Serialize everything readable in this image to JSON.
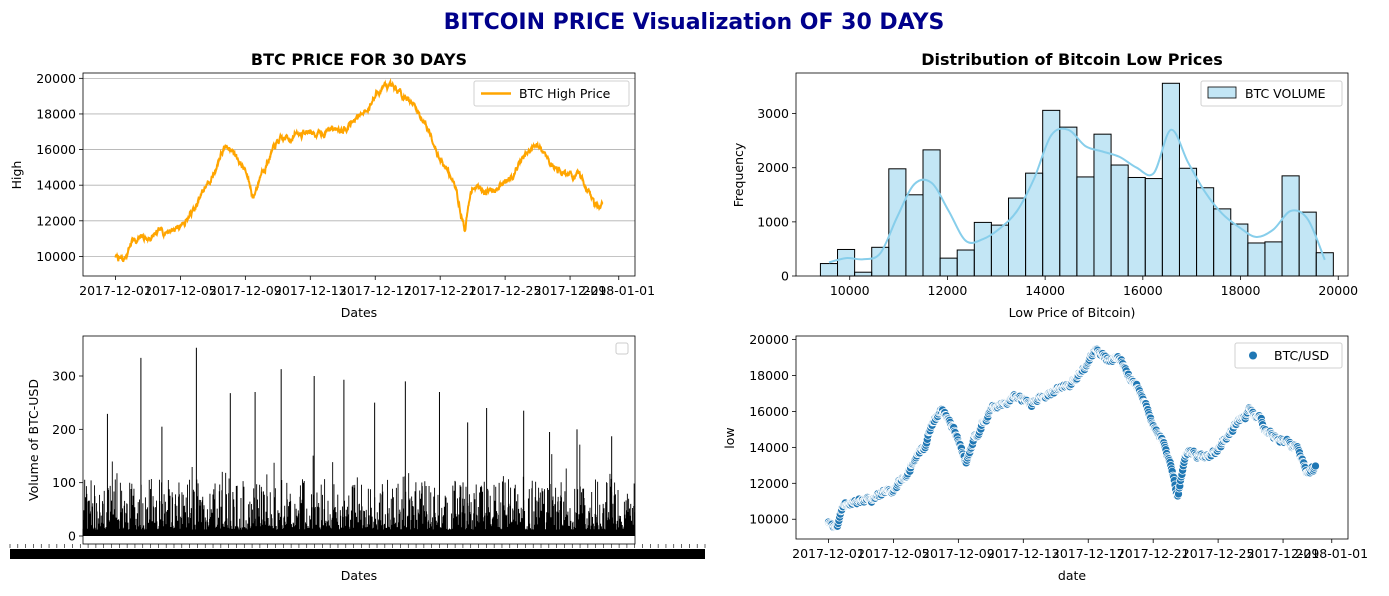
{
  "suptitle": "BITCOIN PRICE Visualization OF 30 DAYS",
  "colors": {
    "high_line": "#ffa500",
    "hist": "#87ceeb",
    "scatter": "#1f77b4",
    "volume": "#000000",
    "suptitle": "#00008b"
  },
  "chart_data": [
    {
      "type": "line",
      "title": "BTC PRICE FOR 30 DAYS",
      "xlabel": "Dates",
      "ylabel": "High",
      "legend": "upper right",
      "grid": "y",
      "xlim": [
        "2017-11-29",
        "2018-01-02"
      ],
      "ylim": [
        8900,
        20300
      ],
      "xticks": [
        "2017-12-01",
        "2017-12-05",
        "2017-12-09",
        "2017-12-13",
        "2017-12-17",
        "2017-12-21",
        "2017-12-25",
        "2017-12-29",
        "2018-01-01"
      ],
      "yticks": [
        10000,
        12000,
        14000,
        16000,
        18000,
        20000
      ],
      "series": [
        {
          "name": "BTC High Price",
          "x": [
            "2017-12-01 00:00",
            "2017-12-01 12:00",
            "2017-12-02 00:00",
            "2017-12-02 12:00",
            "2017-12-03 00:00",
            "2017-12-04 00:00",
            "2017-12-05 00:00",
            "2017-12-06 00:00",
            "2017-12-06 12:00",
            "2017-12-07 00:00",
            "2017-12-07 12:00",
            "2017-12-08 00:00",
            "2017-12-08 12:00",
            "2017-12-09 00:00",
            "2017-12-09 12:00",
            "2017-12-10 00:00",
            "2017-12-10 12:00",
            "2017-12-11 00:00",
            "2017-12-12 00:00",
            "2017-12-13 00:00",
            "2017-12-13 12:00",
            "2017-12-14 00:00",
            "2017-12-15 00:00",
            "2017-12-16 00:00",
            "2017-12-16 12:00",
            "2017-12-17 00:00",
            "2017-12-17 12:00",
            "2017-12-18 00:00",
            "2017-12-19 00:00",
            "2017-12-19 12:00",
            "2017-12-20 00:00",
            "2017-12-20 12:00",
            "2017-12-21 00:00",
            "2017-12-21 12:00",
            "2017-12-22 00:00",
            "2017-12-22 12:00",
            "2017-12-23 00:00",
            "2017-12-24 00:00",
            "2017-12-24 12:00",
            "2017-12-25 00:00",
            "2017-12-26 00:00",
            "2017-12-27 00:00",
            "2017-12-27 12:00",
            "2017-12-28 00:00",
            "2017-12-29 00:00",
            "2017-12-29 12:00",
            "2017-12-30 00:00",
            "2017-12-30 12:00",
            "2017-12-31 00:00"
          ],
          "values": [
            10000,
            9700,
            10900,
            11000,
            11000,
            11400,
            11700,
            12800,
            13800,
            14500,
            15800,
            16200,
            15600,
            14800,
            13300,
            14800,
            15600,
            16400,
            16800,
            17000,
            16800,
            17100,
            17300,
            17800,
            18300,
            19000,
            19600,
            19300,
            19000,
            18300,
            17600,
            16800,
            15500,
            14800,
            13600,
            11500,
            14000,
            13700,
            14000,
            14100,
            15400,
            16200,
            15800,
            15000,
            14600,
            14400,
            14000,
            12900,
            13000
          ]
        }
      ]
    },
    {
      "type": "bar",
      "title": "Distribution of Bitcoin Low Prices",
      "xlabel": "Low Price of Bitcoin)",
      "ylabel": "Frequency",
      "legend": "upper right",
      "legend_label": "BTC VOLUME",
      "kde": true,
      "xlim": [
        8900,
        20200
      ],
      "ylim": [
        0,
        3750
      ],
      "xticks": [
        10000,
        12000,
        14000,
        16000,
        18000,
        20000
      ],
      "yticks": [
        0,
        1000,
        2000,
        3000
      ],
      "bin_start": 9400,
      "bin_width": 350,
      "values": [
        230,
        490,
        70,
        530,
        1980,
        1500,
        2330,
        330,
        480,
        990,
        940,
        1440,
        1900,
        3060,
        2750,
        1830,
        2620,
        2050,
        1820,
        1800,
        3560,
        1990,
        1630,
        1240,
        960,
        610,
        630,
        1850,
        1180,
        430
      ],
      "kde_values": [
        250,
        330,
        310,
        420,
        1100,
        1700,
        1720,
        1200,
        650,
        680,
        880,
        1200,
        1800,
        2600,
        2700,
        2400,
        2300,
        2200,
        2000,
        1900,
        2700,
        2100,
        1550,
        1150,
        900,
        720,
        860,
        1200,
        1050,
        300
      ]
    },
    {
      "type": "bar",
      "xlabel": "Dates",
      "ylabel": "Volume of BTC-USD",
      "legend": "upper right",
      "ylim": [
        -15,
        375
      ],
      "yticks": [
        0,
        100,
        200,
        300
      ],
      "x_range": [
        "2017-12-01",
        "2017-12-31"
      ],
      "values": [
        229,
        334,
        205,
        353,
        268,
        270,
        313,
        300,
        293,
        250,
        290,
        270,
        213,
        240,
        235,
        195,
        200,
        187
      ]
    },
    {
      "type": "scatter",
      "xlabel": "date",
      "ylabel": "low",
      "legend": "upper right",
      "xlim": [
        "2017-11-29",
        "2018-01-02"
      ],
      "ylim": [
        8900,
        20200
      ],
      "xticks": [
        "2017-12-01",
        "2017-12-05",
        "2017-12-09",
        "2017-12-13",
        "2017-12-17",
        "2017-12-21",
        "2017-12-25",
        "2017-12-29",
        "2018-01-01"
      ],
      "yticks": [
        10000,
        12000,
        14000,
        16000,
        18000,
        20000
      ],
      "series": [
        {
          "name": "BTC/USD",
          "x": [
            "2017-12-01 00:00",
            "2017-12-01 12:00",
            "2017-12-02 00:00",
            "2017-12-02 12:00",
            "2017-12-03 00:00",
            "2017-12-04 00:00",
            "2017-12-05 00:00",
            "2017-12-06 00:00",
            "2017-12-06 12:00",
            "2017-12-07 00:00",
            "2017-12-07 12:00",
            "2017-12-08 00:00",
            "2017-12-08 12:00",
            "2017-12-09 00:00",
            "2017-12-09 12:00",
            "2017-12-10 00:00",
            "2017-12-10 12:00",
            "2017-12-11 00:00",
            "2017-12-12 00:00",
            "2017-12-13 00:00",
            "2017-12-13 12:00",
            "2017-12-14 00:00",
            "2017-12-15 00:00",
            "2017-12-16 00:00",
            "2017-12-16 12:00",
            "2017-12-17 00:00",
            "2017-12-17 12:00",
            "2017-12-18 00:00",
            "2017-12-19 00:00",
            "2017-12-19 12:00",
            "2017-12-20 00:00",
            "2017-12-20 12:00",
            "2017-12-21 00:00",
            "2017-12-21 12:00",
            "2017-12-22 00:00",
            "2017-12-22 12:00",
            "2017-12-23 00:00",
            "2017-12-24 00:00",
            "2017-12-24 12:00",
            "2017-12-25 00:00",
            "2017-12-26 00:00",
            "2017-12-27 00:00",
            "2017-12-27 12:00",
            "2017-12-28 00:00",
            "2017-12-29 00:00",
            "2017-12-29 12:00",
            "2017-12-30 00:00",
            "2017-12-30 12:00",
            "2017-12-31 00:00"
          ],
          "values": [
            9900,
            9600,
            10800,
            10900,
            10900,
            11300,
            11600,
            12700,
            13600,
            14300,
            15600,
            16000,
            15400,
            14500,
            13000,
            14600,
            15400,
            16200,
            16600,
            16800,
            16600,
            16900,
            17100,
            17600,
            18100,
            18800,
            19400,
            19100,
            18800,
            18000,
            17300,
            16500,
            15200,
            14500,
            13300,
            11300,
            13800,
            13500,
            13800,
            13900,
            15200,
            16000,
            15600,
            14800,
            14400,
            14200,
            13800,
            12600,
            12800
          ]
        }
      ]
    }
  ]
}
